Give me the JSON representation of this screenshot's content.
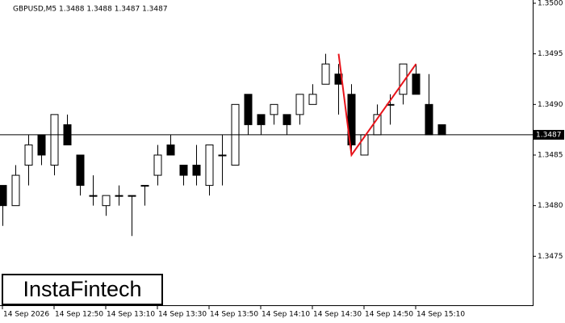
{
  "chart_data": {
    "type": "candlestick",
    "title": "GBPUSD,M5  1.3488 1.3488 1.3487 1.3487",
    "watermark": "InstaFintech",
    "categories": [
      "14 Sep 2026",
      null,
      null,
      null,
      "14 Sep 12:50",
      null,
      null,
      null,
      "14 Sep 13:10",
      null,
      null,
      null,
      "14 Sep 13:30",
      null,
      null,
      null,
      "14 Sep 13:50",
      null,
      null,
      null,
      "14 Sep 14:10",
      null,
      null,
      null,
      "14 Sep 14:30",
      null,
      null,
      null,
      "14 Sep 14:50",
      null,
      null,
      null,
      "14 Sep 15:10",
      null,
      null
    ],
    "open": [
      1.3482,
      1.348,
      1.3484,
      1.3487,
      1.3484,
      1.3488,
      1.3485,
      1.3481,
      1.348,
      1.3481,
      1.3481,
      1.3482,
      1.3483,
      1.3486,
      1.3484,
      1.3484,
      1.3482,
      1.3485,
      1.3484,
      1.3491,
      1.3489,
      1.3489,
      1.3489,
      1.3489,
      1.349,
      1.3492,
      1.3493,
      1.3491,
      1.3485,
      1.3487,
      1.349,
      1.3491,
      1.3493,
      1.349,
      1.3488
    ],
    "high": [
      1.3482,
      1.3484,
      1.3487,
      1.3487,
      1.3489,
      1.3489,
      1.3485,
      1.3483,
      1.3481,
      1.3482,
      1.3481,
      1.3482,
      1.3486,
      1.3487,
      1.3484,
      1.3486,
      1.3486,
      1.3487,
      1.349,
      1.3491,
      1.3489,
      1.349,
      1.3489,
      1.3491,
      1.3492,
      1.3495,
      1.3494,
      1.3492,
      1.3487,
      1.349,
      1.3491,
      1.3494,
      1.3494,
      1.3493,
      1.3488
    ],
    "low": [
      1.3478,
      1.348,
      1.3482,
      1.3484,
      1.3483,
      1.3486,
      1.3481,
      1.348,
      1.3479,
      1.348,
      1.3477,
      1.348,
      1.3482,
      1.3485,
      1.3482,
      1.3482,
      1.3481,
      1.3482,
      1.3484,
      1.3487,
      1.3487,
      1.3488,
      1.3487,
      1.3488,
      1.349,
      1.3492,
      1.3489,
      1.3485,
      1.3485,
      1.3487,
      1.3488,
      1.349,
      1.3491,
      1.3487,
      1.3487
    ],
    "close": [
      1.348,
      1.3483,
      1.3486,
      1.3485,
      1.3489,
      1.3486,
      1.3482,
      1.3481,
      1.3481,
      1.3481,
      1.3481,
      1.3482,
      1.3485,
      1.3485,
      1.3483,
      1.3483,
      1.3486,
      1.3485,
      1.349,
      1.3488,
      1.3488,
      1.349,
      1.3488,
      1.3491,
      1.3491,
      1.3494,
      1.3492,
      1.3486,
      1.3487,
      1.3489,
      1.349,
      1.3494,
      1.3491,
      1.3487,
      1.3487
    ],
    "up_color": "#ffffff",
    "down_color": "#000000",
    "border_color": "#000000",
    "pattern": {
      "color": "#e8141b",
      "x": [
        26,
        27,
        32
      ],
      "y": [
        1.3495,
        1.3485,
        1.3494
      ]
    },
    "current_price": 1.3487,
    "ylim": [
      1.347,
      1.35
    ],
    "yticks": [
      1.3475,
      {
        "value": 1.348,
        "label": "1.3480"
      },
      1.3485,
      {
        "value": 1.349,
        "label": "1.3490"
      },
      1.3495,
      {
        "value": 1.35,
        "label": "1.3500"
      }
    ]
  }
}
